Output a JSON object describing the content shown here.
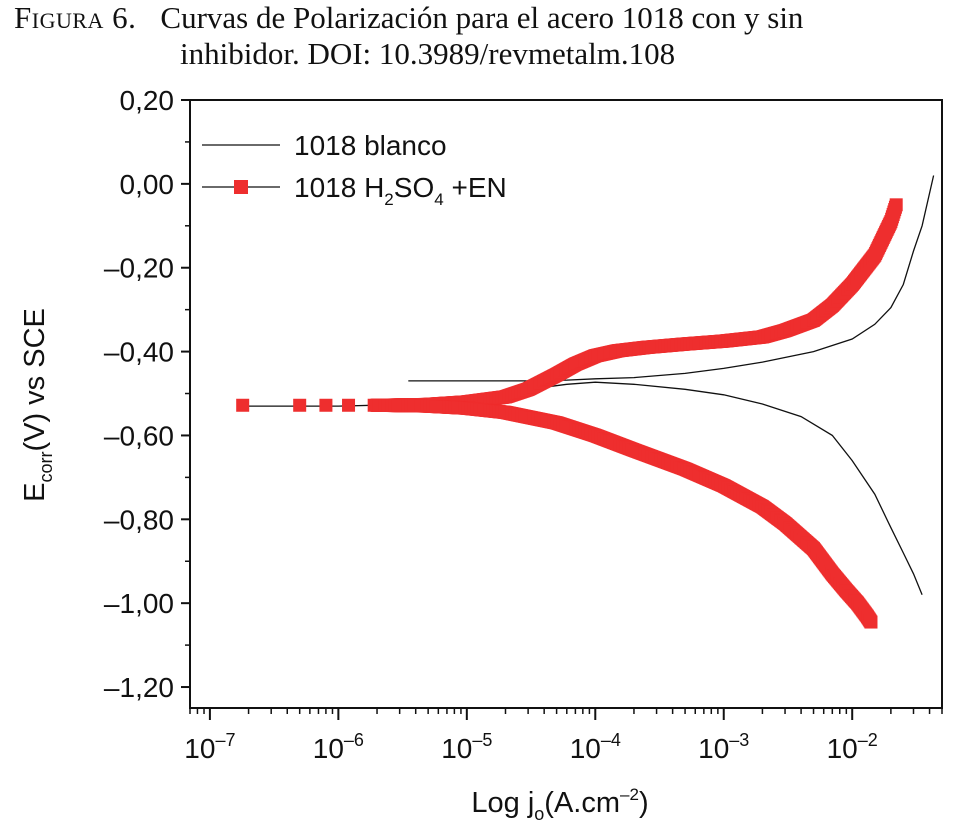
{
  "caption": {
    "label": "Figura 6.",
    "text_line1": "Curvas de Polarización para el acero 1018 con y sin",
    "text_line2": "inhibidor. DOI: 10.3989/revmetalm.108"
  },
  "chart_data": {
    "type": "line",
    "x_scale": "log",
    "xlim": [
      7e-08,
      0.05
    ],
    "ylim": [
      -1.25,
      0.2
    ],
    "y_ticks": [
      0.2,
      0.0,
      -0.2,
      -0.4,
      -0.6,
      -0.8,
      -1.0,
      -1.2
    ],
    "y_tick_labels": [
      "0,20",
      "0,00",
      "–0,20",
      "–0,40",
      "–0,60",
      "–0,80",
      "–1,00",
      "–1,20"
    ],
    "x_ticks": [
      1e-07,
      1e-06,
      1e-05,
      0.0001,
      0.001,
      0.01
    ],
    "x_tick_labels": [
      {
        "base": "10",
        "exp": "–7"
      },
      {
        "base": "10",
        "exp": "–6"
      },
      {
        "base": "10",
        "exp": "–5"
      },
      {
        "base": "10",
        "exp": "–4"
      },
      {
        "base": "10",
        "exp": "–3"
      },
      {
        "base": "10",
        "exp": "–2"
      }
    ],
    "xlabel": {
      "pre": "Log j",
      "sub": "o",
      "mid": "(A.cm",
      "sup": "–2",
      "post": ")"
    },
    "ylabel": {
      "pre": "E",
      "sub": "corr",
      "post": "(V) vs SCE"
    },
    "legend_position": "top-left",
    "series": [
      {
        "name": "1018 blanco",
        "name_parts": {
          "pre": "1018 blanco"
        },
        "color": "#111111",
        "style": "thin-line",
        "branches": [
          {
            "x": [
              3.5e-06,
              1e-05,
              3e-05,
              6e-05,
              0.0001,
              0.0002,
              0.0005,
              0.001,
              0.002,
              0.005,
              0.01,
              0.015,
              0.02,
              0.025,
              0.03,
              0.035,
              0.043
            ],
            "y": [
              -0.47,
              -0.47,
              -0.47,
              -0.468,
              -0.465,
              -0.462,
              -0.452,
              -0.44,
              -0.425,
              -0.4,
              -0.37,
              -0.335,
              -0.295,
              -0.24,
              -0.16,
              -0.1,
              0.02
            ]
          },
          {
            "x": [
              2e-07,
              1e-06,
              5e-06,
              1e-05,
              3e-05,
              6e-05,
              0.0001,
              0.0002,
              0.0005,
              0.001,
              0.002,
              0.004,
              0.007,
              0.01,
              0.015,
              0.02,
              0.025,
              0.03,
              0.035
            ],
            "y": [
              -0.53,
              -0.53,
              -0.525,
              -0.51,
              -0.49,
              -0.478,
              -0.473,
              -0.478,
              -0.49,
              -0.503,
              -0.525,
              -0.555,
              -0.6,
              -0.66,
              -0.74,
              -0.82,
              -0.88,
              -0.93,
              -0.98
            ]
          }
        ]
      },
      {
        "name": "1018 H2SO4 +EN",
        "name_parts": {
          "pre": "1018 H",
          "sub1": "2",
          "mid": "SO",
          "sub2": "4",
          "post": " +EN"
        },
        "color": "#ee2e2e",
        "style": "square-markers",
        "sparse_points": {
          "x": [
            1.8e-07,
            5e-07,
            8e-07,
            1.2e-06,
            1.9e-06
          ],
          "y": [
            -0.528,
            -0.528,
            -0.528,
            -0.528,
            -0.528
          ]
        },
        "branches": [
          {
            "x": [
              2e-06,
              5e-06,
              1e-05,
              2e-05,
              3e-05,
              5e-05,
              7e-05,
              0.0001,
              0.00015,
              0.00025,
              0.0005,
              0.001,
              0.002,
              0.003,
              0.005,
              0.007,
              0.01,
              0.015,
              0.02,
              0.022
            ],
            "y": [
              -0.528,
              -0.526,
              -0.52,
              -0.508,
              -0.49,
              -0.455,
              -0.43,
              -0.41,
              -0.398,
              -0.39,
              -0.382,
              -0.375,
              -0.365,
              -0.35,
              -0.325,
              -0.29,
              -0.24,
              -0.17,
              -0.09,
              -0.05
            ]
          },
          {
            "x": [
              2e-06,
              5e-06,
              1e-05,
              2e-05,
              5e-05,
              0.0001,
              0.0002,
              0.0005,
              0.001,
              0.002,
              0.003,
              0.005,
              0.007,
              0.009,
              0.011,
              0.013,
              0.014
            ],
            "y": [
              -0.528,
              -0.53,
              -0.535,
              -0.545,
              -0.57,
              -0.6,
              -0.635,
              -0.68,
              -0.72,
              -0.77,
              -0.81,
              -0.87,
              -0.93,
              -0.97,
              -1.0,
              -1.03,
              -1.045
            ]
          }
        ]
      }
    ]
  }
}
